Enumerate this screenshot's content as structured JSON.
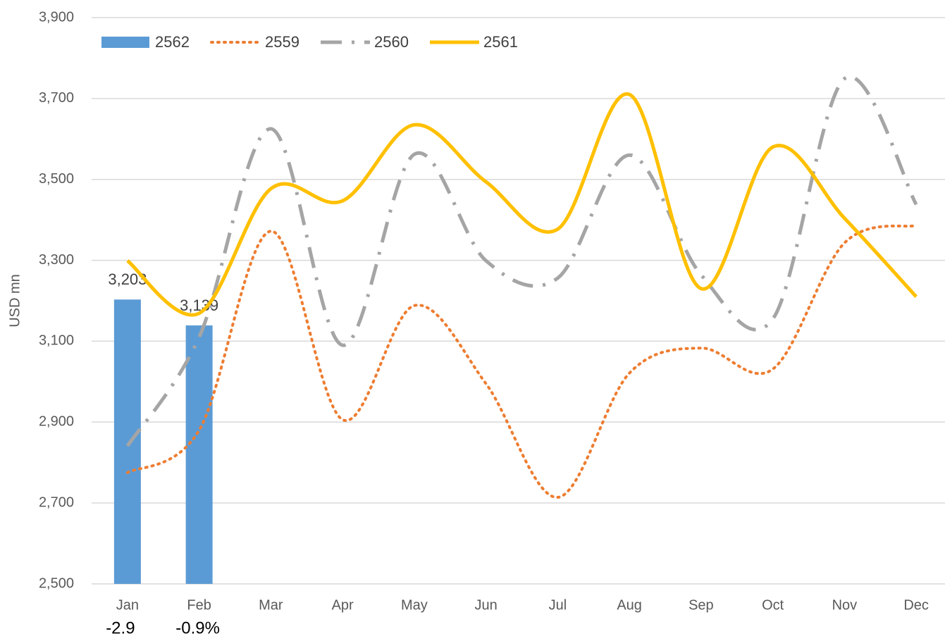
{
  "chart_data": {
    "type": "combo",
    "y_label": "USD mn",
    "categories": [
      "Jan",
      "Feb",
      "Mar",
      "Apr",
      "May",
      "Jun",
      "Jul",
      "Aug",
      "Sep",
      "Oct",
      "Nov",
      "Dec"
    ],
    "series": [
      {
        "name": "2562",
        "type": "bar",
        "color": "#5b9bd5",
        "values": [
          3203,
          3139,
          null,
          null,
          null,
          null,
          null,
          null,
          null,
          null,
          null,
          null
        ],
        "value_labels": [
          "3,203",
          "3,139",
          null,
          null,
          null,
          null,
          null,
          null,
          null,
          null,
          null,
          null
        ]
      },
      {
        "name": "2559",
        "type": "line",
        "style": "dotted",
        "color": "#ed7d31",
        "values": [
          2775,
          2880,
          3372,
          2906,
          3188,
          2995,
          2714,
          3021,
          3083,
          3031,
          3343,
          3386
        ]
      },
      {
        "name": "2560",
        "type": "line",
        "style": "dash-dot",
        "color": "#a5a5a5",
        "values": [
          2841,
          3110,
          3625,
          3090,
          3562,
          3299,
          3256,
          3560,
          3264,
          3155,
          3749,
          3438
        ]
      },
      {
        "name": "2561",
        "type": "line",
        "style": "solid",
        "color": "#ffc000",
        "values": [
          3299,
          3169,
          3477,
          3447,
          3635,
          3494,
          3377,
          3710,
          3230,
          3580,
          3404,
          3210
        ]
      }
    ],
    "annotations": [
      "-2.9",
      "-0.9%"
    ],
    "ylim": [
      2500,
      3900
    ],
    "yticks": [
      {
        "value": 2500,
        "label": "2,500"
      },
      {
        "value": 2700,
        "label": "2,700"
      },
      {
        "value": 2900,
        "label": "2,900"
      },
      {
        "value": 3100,
        "label": "3,100"
      },
      {
        "value": 3300,
        "label": "3,300"
      },
      {
        "value": 3500,
        "label": "3,500"
      },
      {
        "value": 3700,
        "label": "3,700"
      },
      {
        "value": 3900,
        "label": "3,900"
      }
    ],
    "grid": true,
    "legend": "top-left"
  }
}
